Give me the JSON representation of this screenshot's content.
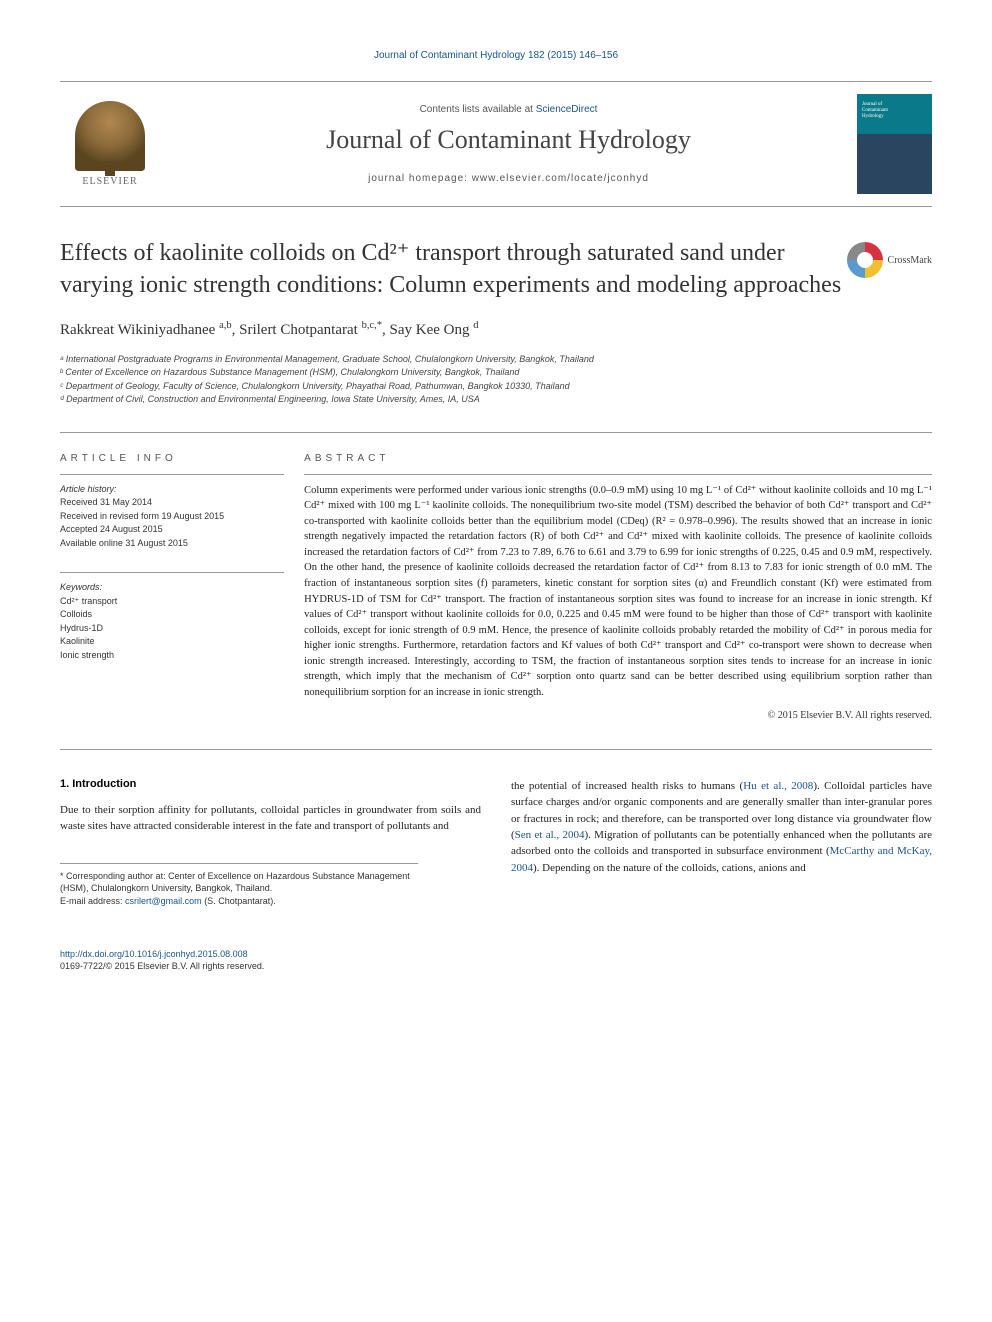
{
  "header": {
    "citation_link": "Journal of Contaminant Hydrology 182 (2015) 146–156",
    "lists_text": "Contents lists available at ",
    "lists_link": "ScienceDirect",
    "journal_name": "Journal of Contaminant Hydrology",
    "homepage_label": "journal homepage: www.elsevier.com/locate/jconhyd",
    "elsevier_label": "ELSEVIER",
    "cover_line1": "Journal of",
    "cover_line2": "Contaminant",
    "cover_line3": "Hydrology"
  },
  "crossmark_text": "CrossMark",
  "article": {
    "title": "Effects of kaolinite colloids on Cd²⁺ transport through saturated sand under varying ionic strength conditions: Column experiments and modeling approaches",
    "authors_html": "Rakkreat Wikiniyadhanee <sup>a,b</sup>, Srilert Chotpantarat <sup>b,c,*</sup>, Say Kee Ong <sup>d</sup>",
    "affiliations": {
      "a": "ᵃ International Postgraduate Programs in Environmental Management, Graduate School, Chulalongkorn University, Bangkok, Thailand",
      "b": "ᵇ Center of Excellence on Hazardous Substance Management (HSM), Chulalongkorn University, Bangkok, Thailand",
      "c": "ᶜ Department of Geology, Faculty of Science, Chulalongkorn University, Phayathai Road, Pathumwan, Bangkok 10330, Thailand",
      "d": "ᵈ Department of Civil, Construction and Environmental Engineering, Iowa State University, Ames, IA, USA"
    }
  },
  "info": {
    "article_info_heading": "ARTICLE INFO",
    "abstract_heading": "ABSTRACT",
    "history_label": "Article history:",
    "history": {
      "received": "Received 31 May 2014",
      "revised": "Received in revised form 19 August 2015",
      "accepted": "Accepted 24 August 2015",
      "online": "Available online 31 August 2015"
    },
    "keywords_label": "Keywords:",
    "keywords": [
      "Cd²⁺ transport",
      "Colloids",
      "Hydrus-1D",
      "Kaolinite",
      "Ionic strength"
    ],
    "abstract": "Column experiments were performed under various ionic strengths (0.0–0.9 mM) using 10 mg L⁻¹ of Cd²⁺ without kaolinite colloids and 10 mg L⁻¹ Cd²⁺ mixed with 100 mg L⁻¹ kaolinite colloids. The nonequilibrium two-site model (TSM) described the behavior of both Cd²⁺ transport and Cd²⁺ co-transported with kaolinite colloids better than the equilibrium model (CDeq) (R² = 0.978–0.996). The results showed that an increase in ionic strength negatively impacted the retardation factors (R) of both Cd²⁺ and Cd²⁺ mixed with kaolinite colloids. The presence of kaolinite colloids increased the retardation factors of Cd²⁺ from 7.23 to 7.89, 6.76 to 6.61 and 3.79 to 6.99 for ionic strengths of 0.225, 0.45 and 0.9 mM, respectively. On the other hand, the presence of kaolinite colloids decreased the retardation factor of Cd²⁺ from 8.13 to 7.83 for ionic strength of 0.0 mM. The fraction of instantaneous sorption sites (f) parameters, kinetic constant for sorption sites (α) and Freundlich constant (Kf) were estimated from HYDRUS-1D of TSM for Cd²⁺ transport. The fraction of instantaneous sorption sites was found to increase for an increase in ionic strength. Kf values of Cd²⁺ transport without kaolinite colloids for 0.0, 0.225 and 0.45 mM were found to be higher than those of Cd²⁺ transport with kaolinite colloids, except for ionic strength of 0.9 mM. Hence, the presence of kaolinite colloids probably retarded the mobility of Cd²⁺ in porous media for higher ionic strengths. Furthermore, retardation factors and Kf values of both Cd²⁺ transport and Cd²⁺ co-transport were shown to decrease when ionic strength increased. Interestingly, according to TSM, the fraction of instantaneous sorption sites tends to increase for an increase in ionic strength, which imply that the mechanism of Cd²⁺ sorption onto quartz sand can be better described using equilibrium sorption rather than nonequilibrium sorption for an increase in ionic strength.",
    "copyright": "© 2015 Elsevier B.V. All rights reserved."
  },
  "body": {
    "intro_heading": "1. Introduction",
    "col1_para": "Due to their sorption affinity for pollutants, colloidal particles in groundwater from soils and waste sites have attracted considerable interest in the fate and transport of pollutants and",
    "col2_pre_cite1": "the potential of increased health risks to humans (",
    "col2_cite1": "Hu et al., 2008",
    "col2_mid1": "). Colloidal particles have surface charges and/or organic components and are generally smaller than inter-granular pores or fractures in rock; and therefore, can be transported over long distance via groundwater flow (",
    "col2_cite2": "Sen et al., 2004",
    "col2_mid2": "). Migration of pollutants can be potentially enhanced when the pollutants are adsorbed onto the colloids and transported in subsurface environment (",
    "col2_cite3": "McCarthy and McKay, 2004",
    "col2_post": "). Depending on the nature of the colloids, cations, anions and"
  },
  "footnote": {
    "corresponding": "* Corresponding author at: Center of Excellence on Hazardous Substance Management (HSM), Chulalongkorn University, Bangkok, Thailand.",
    "email_label": "E-mail address: ",
    "email": "csrilert@gmail.com",
    "email_suffix": " (S. Chotpantarat)."
  },
  "footer": {
    "doi": "http://dx.doi.org/10.1016/j.jconhyd.2015.08.008",
    "copyright_line": "0169-7722/© 2015 Elsevier B.V. All rights reserved."
  },
  "colors": {
    "link": "#1a5490",
    "text": "#222222",
    "rule": "#999999"
  }
}
